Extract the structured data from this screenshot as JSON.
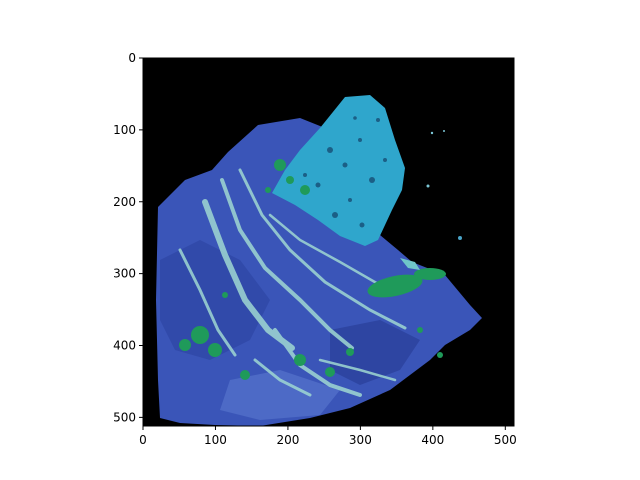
{
  "figure": {
    "image_description": "",
    "x_ticks": [
      {
        "value": 0,
        "label": "0"
      },
      {
        "value": 100,
        "label": "100"
      },
      {
        "value": 200,
        "label": "200"
      },
      {
        "value": 300,
        "label": "300"
      },
      {
        "value": 400,
        "label": "400"
      },
      {
        "value": 500,
        "label": "500"
      }
    ],
    "y_ticks": [
      {
        "value": 0,
        "label": "0"
      },
      {
        "value": 100,
        "label": "100"
      },
      {
        "value": 200,
        "label": "200"
      },
      {
        "value": 300,
        "label": "300"
      },
      {
        "value": 400,
        "label": "400"
      },
      {
        "value": 500,
        "label": "500"
      }
    ],
    "xlim": [
      0,
      512
    ],
    "ylim": [
      512,
      0
    ],
    "colors": {
      "background": "#000000",
      "stone_blue": "#3a55b8",
      "stone_dark_blue": "#2a3f98",
      "top_chip_cyan": "#2fa6cc",
      "veins_light": "#9fd8d2",
      "malachite_green": "#1f9a5a"
    }
  }
}
